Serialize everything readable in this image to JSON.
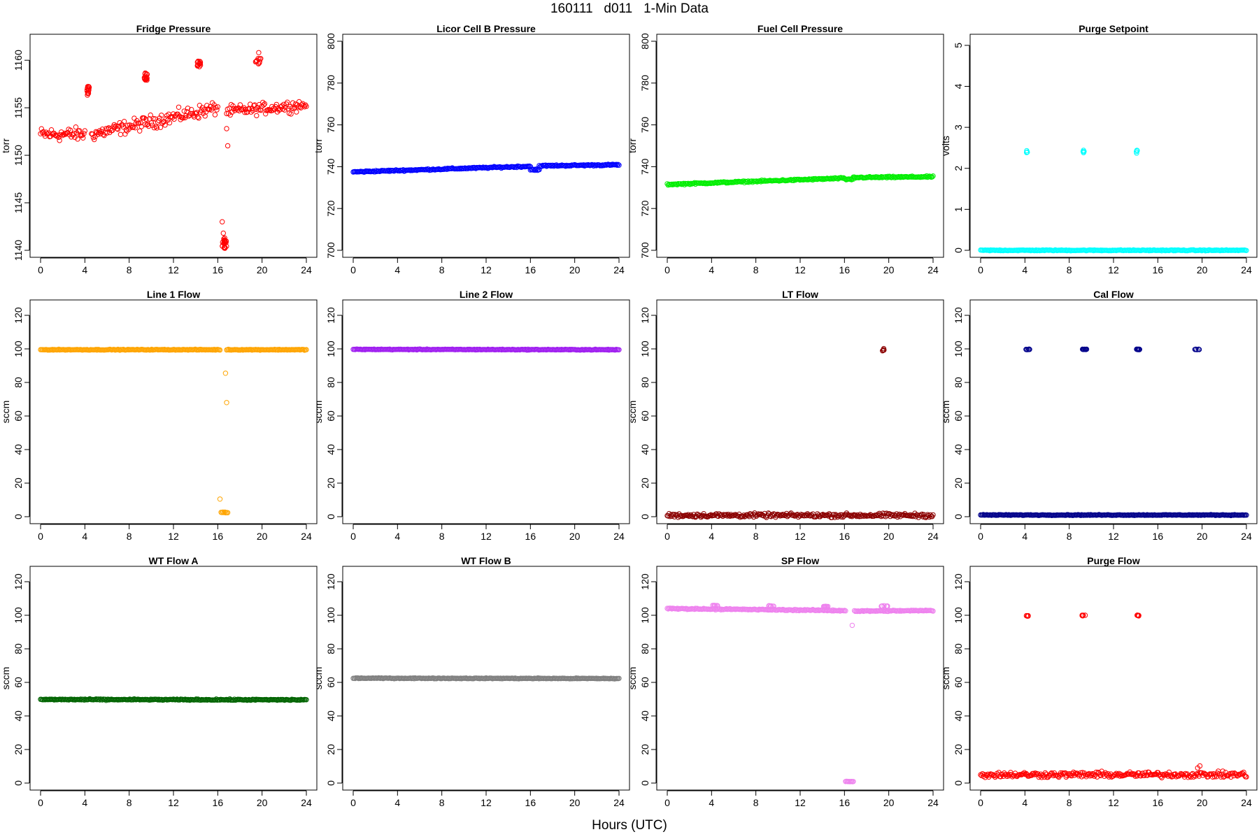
{
  "title": "160111   d011   1-Min Data",
  "xlabel": "Hours (UTC)",
  "chart_data": [
    {
      "type": "scatter",
      "title": "Fridge Pressure",
      "ylabel": "torr",
      "color": "#ff0000",
      "xlim": [
        0,
        24
      ],
      "ylim": [
        1140,
        1162
      ],
      "xticks": [
        0,
        4,
        8,
        12,
        16,
        20,
        24
      ],
      "yticks": [
        1140,
        1145,
        1150,
        1155,
        1160
      ],
      "series": [
        {
          "kind": "band",
          "x0": 0,
          "x1": 4,
          "y0": 1152.2,
          "y1": 1152.2,
          "noise": 0.6
        },
        {
          "kind": "band",
          "x0": 4.6,
          "x1": 16,
          "y0": 1152.2,
          "y1": 1155.0,
          "noise": 0.6
        },
        {
          "kind": "band",
          "x0": 16.8,
          "x1": 24,
          "y0": 1154.6,
          "y1": 1155.3,
          "noise": 0.5
        },
        {
          "kind": "cluster",
          "x": 4.3,
          "y": 1156.8,
          "n": 14,
          "dx": 0.1,
          "dy": 0.5
        },
        {
          "kind": "cluster",
          "x": 9.5,
          "y": 1158.4,
          "n": 14,
          "dx": 0.15,
          "dy": 0.5
        },
        {
          "kind": "cluster",
          "x": 14.3,
          "y": 1159.4,
          "n": 14,
          "dx": 0.15,
          "dy": 0.5
        },
        {
          "kind": "cluster",
          "x": 19.6,
          "y": 1159.9,
          "n": 10,
          "dx": 0.3,
          "dy": 0.3
        },
        {
          "kind": "cluster",
          "x": 16.6,
          "y": 1140.8,
          "n": 20,
          "dx": 0.2,
          "dy": 0.6
        },
        {
          "kind": "points",
          "x": [
            16.4,
            16.8,
            16.9,
            19.7,
            16.5
          ],
          "y": [
            1143.0,
            1152.8,
            1151.0,
            1160.8,
            1141.8
          ]
        }
      ]
    },
    {
      "type": "scatter",
      "title": "Licor Cell B Pressure",
      "ylabel": "torr",
      "color": "#0000ff",
      "xlim": [
        0,
        24
      ],
      "ylim": [
        700,
        800
      ],
      "xticks": [
        0,
        4,
        8,
        12,
        16,
        20,
        24
      ],
      "yticks": [
        700,
        720,
        740,
        760,
        780,
        800
      ],
      "series": [
        {
          "kind": "band",
          "x0": 0,
          "x1": 16,
          "y0": 737.5,
          "y1": 740.2,
          "noise": 0.3
        },
        {
          "kind": "band",
          "x0": 16.8,
          "x1": 24,
          "y0": 740.4,
          "y1": 740.9,
          "noise": 0.3
        },
        {
          "kind": "band",
          "x0": 16,
          "x1": 16.8,
          "y0": 738.5,
          "y1": 738.5,
          "noise": 0.3
        }
      ]
    },
    {
      "type": "scatter",
      "title": "Fuel Cell Pressure",
      "ylabel": "torr",
      "color": "#00ee00",
      "xlim": [
        0,
        24
      ],
      "ylim": [
        700,
        800
      ],
      "xticks": [
        0,
        4,
        8,
        12,
        16,
        20,
        24
      ],
      "yticks": [
        700,
        720,
        740,
        760,
        780,
        800
      ],
      "series": [
        {
          "kind": "band",
          "x0": 0,
          "x1": 16,
          "y0": 731.5,
          "y1": 734.5,
          "noise": 0.3
        },
        {
          "kind": "band",
          "x0": 16.8,
          "x1": 24,
          "y0": 734.8,
          "y1": 735.2,
          "noise": 0.3
        },
        {
          "kind": "band",
          "x0": 16,
          "x1": 16.8,
          "y0": 734.0,
          "y1": 734.0,
          "noise": 0.3
        }
      ]
    },
    {
      "type": "scatter",
      "title": "Purge Setpoint",
      "ylabel": "volts",
      "color": "#00ffff",
      "xlim": [
        0,
        24
      ],
      "ylim": [
        0,
        5.1
      ],
      "xticks": [
        0,
        4,
        8,
        12,
        16,
        20,
        24
      ],
      "yticks": [
        0,
        1,
        2,
        3,
        4,
        5
      ],
      "series": [
        {
          "kind": "band",
          "x0": 0,
          "x1": 24,
          "y0": 0,
          "y1": 0,
          "noise": 0.01
        },
        {
          "kind": "cluster",
          "x": 4.2,
          "y": 2.4,
          "n": 5,
          "dx": 0.05,
          "dy": 0.04
        },
        {
          "kind": "cluster",
          "x": 9.3,
          "y": 2.4,
          "n": 5,
          "dx": 0.05,
          "dy": 0.04
        },
        {
          "kind": "cluster",
          "x": 14.1,
          "y": 2.4,
          "n": 5,
          "dx": 0.05,
          "dy": 0.04
        }
      ]
    },
    {
      "type": "scatter",
      "title": "Line 1 Flow",
      "ylabel": "sccm",
      "color": "#ffa500",
      "xlim": [
        0,
        24
      ],
      "ylim": [
        0,
        125
      ],
      "xticks": [
        0,
        4,
        8,
        12,
        16,
        20,
        24
      ],
      "yticks": [
        0,
        20,
        40,
        60,
        80,
        100,
        120
      ],
      "series": [
        {
          "kind": "band",
          "x0": 0,
          "x1": 16.2,
          "y0": 99.5,
          "y1": 99.5,
          "noise": 0.2
        },
        {
          "kind": "band",
          "x0": 16.8,
          "x1": 24,
          "y0": 99.5,
          "y1": 99.5,
          "noise": 0.2
        },
        {
          "kind": "band",
          "x0": 16.3,
          "x1": 16.9,
          "y0": 2.5,
          "y1": 2.5,
          "noise": 0.3
        },
        {
          "kind": "points",
          "x": [
            16.2,
            16.7,
            16.8
          ],
          "y": [
            10.5,
            85.5,
            68.0
          ]
        }
      ]
    },
    {
      "type": "scatter",
      "title": "Line 2 Flow",
      "ylabel": "sccm",
      "color": "#a020f0",
      "xlim": [
        0,
        24
      ],
      "ylim": [
        0,
        125
      ],
      "xticks": [
        0,
        4,
        8,
        12,
        16,
        20,
        24
      ],
      "yticks": [
        0,
        20,
        40,
        60,
        80,
        100,
        120
      ],
      "series": [
        {
          "kind": "band",
          "x0": 0,
          "x1": 24,
          "y0": 99.7,
          "y1": 99.5,
          "noise": 0.2
        }
      ]
    },
    {
      "type": "scatter",
      "title": "LT Flow",
      "ylabel": "sccm",
      "color": "#8b0000",
      "xlim": [
        0,
        24
      ],
      "ylim": [
        0,
        125
      ],
      "xticks": [
        0,
        4,
        8,
        12,
        16,
        20,
        24
      ],
      "yticks": [
        0,
        20,
        40,
        60,
        80,
        100,
        120
      ],
      "series": [
        {
          "kind": "band",
          "x0": 0,
          "x1": 24,
          "y0": 0.8,
          "y1": 0.8,
          "noise": 1.0
        },
        {
          "kind": "cluster",
          "x": 19.5,
          "y": 99.5,
          "n": 5,
          "dx": 0.08,
          "dy": 1.0
        }
      ]
    },
    {
      "type": "scatter",
      "title": "Cal Flow",
      "ylabel": "sccm",
      "color": "#00008b",
      "xlim": [
        0,
        24
      ],
      "ylim": [
        0,
        125
      ],
      "xticks": [
        0,
        4,
        8,
        12,
        16,
        20,
        24
      ],
      "yticks": [
        0,
        20,
        40,
        60,
        80,
        100,
        120
      ],
      "series": [
        {
          "kind": "band",
          "x0": 0,
          "x1": 24,
          "y0": 1.0,
          "y1": 1.0,
          "noise": 0.2
        },
        {
          "kind": "cluster",
          "x": 4.3,
          "y": 99.7,
          "n": 10,
          "dx": 0.2,
          "dy": 0.15
        },
        {
          "kind": "cluster",
          "x": 9.4,
          "y": 99.7,
          "n": 10,
          "dx": 0.2,
          "dy": 0.15
        },
        {
          "kind": "cluster",
          "x": 14.2,
          "y": 99.7,
          "n": 10,
          "dx": 0.2,
          "dy": 0.15
        },
        {
          "kind": "cluster",
          "x": 19.5,
          "y": 99.7,
          "n": 8,
          "dx": 0.25,
          "dy": 0.15
        }
      ]
    },
    {
      "type": "scatter",
      "title": "WT Flow A",
      "ylabel": "sccm",
      "color": "#006400",
      "xlim": [
        0,
        24
      ],
      "ylim": [
        0,
        125
      ],
      "xticks": [
        0,
        4,
        8,
        12,
        16,
        20,
        24
      ],
      "yticks": [
        0,
        20,
        40,
        60,
        80,
        100,
        120
      ],
      "series": [
        {
          "kind": "band",
          "x0": 0,
          "x1": 24,
          "y0": 49.8,
          "y1": 49.6,
          "noise": 0.3
        }
      ]
    },
    {
      "type": "scatter",
      "title": "WT Flow B",
      "ylabel": "sccm",
      "color": "#808080",
      "xlim": [
        0,
        24
      ],
      "ylim": [
        0,
        125
      ],
      "xticks": [
        0,
        4,
        8,
        12,
        16,
        20,
        24
      ],
      "yticks": [
        0,
        20,
        40,
        60,
        80,
        100,
        120
      ],
      "series": [
        {
          "kind": "band",
          "x0": 0,
          "x1": 24,
          "y0": 62.5,
          "y1": 62.3,
          "noise": 0.2
        }
      ]
    },
    {
      "type": "scatter",
      "title": "SP Flow",
      "ylabel": "sccm",
      "color": "#ee82ee",
      "xlim": [
        0,
        24
      ],
      "ylim": [
        0,
        125
      ],
      "xticks": [
        0,
        4,
        8,
        12,
        16,
        20,
        24
      ],
      "yticks": [
        0,
        20,
        40,
        60,
        80,
        100,
        120
      ],
      "series": [
        {
          "kind": "band",
          "x0": 0,
          "x1": 16.1,
          "y0": 104.0,
          "y1": 102.8,
          "noise": 0.3
        },
        {
          "kind": "band",
          "x0": 16.9,
          "x1": 24,
          "y0": 102.5,
          "y1": 102.8,
          "noise": 0.3
        },
        {
          "kind": "band",
          "x0": 16.1,
          "x1": 16.8,
          "y0": 1.0,
          "y1": 1.0,
          "noise": 0.2
        },
        {
          "kind": "cluster",
          "x": 4.3,
          "y": 105.8,
          "n": 8,
          "dx": 0.25,
          "dy": 0.2
        },
        {
          "kind": "cluster",
          "x": 9.4,
          "y": 105.5,
          "n": 8,
          "dx": 0.25,
          "dy": 0.2
        },
        {
          "kind": "cluster",
          "x": 14.3,
          "y": 105.2,
          "n": 8,
          "dx": 0.25,
          "dy": 0.2
        },
        {
          "kind": "cluster",
          "x": 19.6,
          "y": 105.5,
          "n": 8,
          "dx": 0.3,
          "dy": 0.2
        },
        {
          "kind": "points",
          "x": [
            16.7
          ],
          "y": [
            94.0
          ]
        }
      ]
    },
    {
      "type": "scatter",
      "title": "Purge Flow",
      "ylabel": "sccm",
      "color": "#ff0000",
      "xlim": [
        0,
        24
      ],
      "ylim": [
        0,
        125
      ],
      "xticks": [
        0,
        4,
        8,
        12,
        16,
        20,
        24
      ],
      "yticks": [
        0,
        20,
        40,
        60,
        80,
        100,
        120
      ],
      "series": [
        {
          "kind": "band",
          "x0": 0,
          "x1": 24,
          "y0": 5.0,
          "y1": 5.0,
          "noise": 1.4
        },
        {
          "kind": "cluster",
          "x": 4.2,
          "y": 99.8,
          "n": 6,
          "dx": 0.1,
          "dy": 0.3
        },
        {
          "kind": "cluster",
          "x": 9.3,
          "y": 99.8,
          "n": 6,
          "dx": 0.15,
          "dy": 0.3
        },
        {
          "kind": "cluster",
          "x": 14.2,
          "y": 99.8,
          "n": 6,
          "dx": 0.1,
          "dy": 0.3
        },
        {
          "kind": "points",
          "x": [
            19.6,
            19.8
          ],
          "y": [
            9.0,
            10.2
          ]
        }
      ]
    }
  ]
}
